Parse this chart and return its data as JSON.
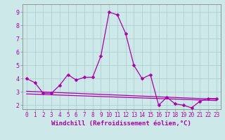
{
  "xlabel": "Windchill (Refroidissement éolien,°C)",
  "bg_color": "#cce8e8",
  "grid_color": "#aacccc",
  "line_color": "#aa00aa",
  "spine_color": "#888888",
  "xlim": [
    -0.5,
    23.5
  ],
  "ylim": [
    1.7,
    9.6
  ],
  "yticks": [
    2,
    3,
    4,
    5,
    6,
    7,
    8,
    9
  ],
  "xticks": [
    0,
    1,
    2,
    3,
    4,
    5,
    6,
    7,
    8,
    9,
    10,
    11,
    12,
    13,
    14,
    15,
    16,
    17,
    18,
    19,
    20,
    21,
    22,
    23
  ],
  "series1_x": [
    0,
    1,
    2,
    3,
    4,
    5,
    6,
    7,
    8,
    9,
    10,
    11,
    12,
    13,
    14,
    15,
    16,
    17,
    18,
    19,
    20,
    21,
    22,
    23
  ],
  "series1_y": [
    4.0,
    3.7,
    2.9,
    2.9,
    3.5,
    4.3,
    3.9,
    4.1,
    4.1,
    5.7,
    9.0,
    8.8,
    7.4,
    5.0,
    4.0,
    4.3,
    2.0,
    2.6,
    2.1,
    2.0,
    1.8,
    2.3,
    2.5,
    2.5
  ],
  "trend1_x": [
    0,
    23
  ],
  "trend1_y": [
    3.05,
    2.45
  ],
  "trend2_x": [
    0,
    23
  ],
  "trend2_y": [
    2.85,
    2.35
  ],
  "marker_size": 2.5,
  "line_width": 0.9,
  "tick_fontsize": 5.5,
  "xlabel_fontsize": 6.5
}
